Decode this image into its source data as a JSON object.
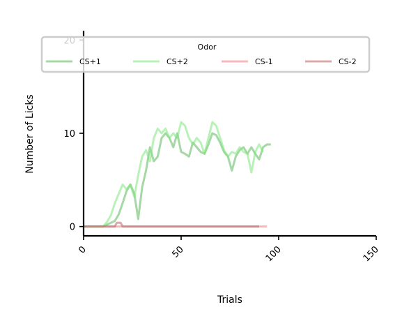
{
  "chart_data": {
    "type": "line",
    "xlabel": "Trials",
    "ylabel": "Number of Licks",
    "xlim": [
      0,
      150
    ],
    "ylim": [
      -1,
      21
    ],
    "xticks": [
      0,
      50,
      100,
      150
    ],
    "xtick_labels": [
      "0",
      "50",
      "100",
      "150"
    ],
    "yticks": [
      0,
      10,
      20
    ],
    "ytick_labels": [
      "0",
      "10",
      "20"
    ],
    "grid": false,
    "legend": {
      "title": "Odor",
      "placement": "top",
      "columns": 4
    },
    "series": [
      {
        "name": "CS+1",
        "color": "#5cb85c",
        "x": [
          0,
          5,
          10,
          14,
          16,
          18,
          20,
          22,
          24,
          26,
          28,
          30,
          32,
          34,
          36,
          38,
          40,
          42,
          44,
          46,
          48,
          50,
          52,
          54,
          56,
          58,
          60,
          62,
          64,
          66,
          68,
          70,
          72,
          74,
          76,
          78,
          80,
          82,
          84,
          86,
          88,
          90,
          92,
          94,
          96
        ],
        "y": [
          0,
          0,
          0,
          0.4,
          0.6,
          1.3,
          2.5,
          3.8,
          4.5,
          3.5,
          0.8,
          4.2,
          6.0,
          8.5,
          7.0,
          7.5,
          9.5,
          10.0,
          9.5,
          8.5,
          10.0,
          8.0,
          7.8,
          7.5,
          9.0,
          8.5,
          8.0,
          7.8,
          8.8,
          10.0,
          9.8,
          9.0,
          8.0,
          7.5,
          6.0,
          7.5,
          8.2,
          8.5,
          7.8,
          8.5,
          7.8,
          7.2,
          8.5,
          8.8,
          8.8
        ]
      },
      {
        "name": "CS+2",
        "color": "#7ee87e",
        "x": [
          0,
          5,
          10,
          12,
          14,
          16,
          18,
          20,
          22,
          24,
          26,
          28,
          30,
          32,
          34,
          36,
          38,
          40,
          42,
          44,
          46,
          48,
          50,
          52,
          54,
          56,
          58,
          60,
          62,
          64,
          66,
          68,
          70,
          72,
          74,
          76,
          78,
          80,
          82,
          84,
          86,
          88,
          90,
          92
        ],
        "y": [
          0,
          0,
          0,
          0.5,
          1.2,
          2.5,
          3.5,
          4.5,
          4.0,
          4.5,
          3.2,
          5.5,
          7.5,
          8.2,
          7.0,
          9.5,
          10.5,
          10.0,
          10.5,
          9.5,
          10.0,
          9.5,
          11.2,
          10.8,
          9.5,
          8.8,
          9.5,
          9.0,
          7.8,
          9.5,
          11.2,
          10.8,
          9.5,
          8.2,
          7.5,
          8.0,
          7.8,
          8.5,
          8.0,
          7.8,
          5.8,
          8.0,
          8.8,
          8.0
        ]
      },
      {
        "name": "CS-1",
        "color": "#f08080",
        "x": [
          0,
          94
        ],
        "y": [
          0,
          0
        ]
      },
      {
        "name": "CS-2",
        "color": "#b86464",
        "x": [
          0,
          16,
          17,
          19,
          20,
          90
        ],
        "y": [
          0,
          0,
          0.4,
          0.4,
          0,
          0
        ]
      }
    ]
  }
}
